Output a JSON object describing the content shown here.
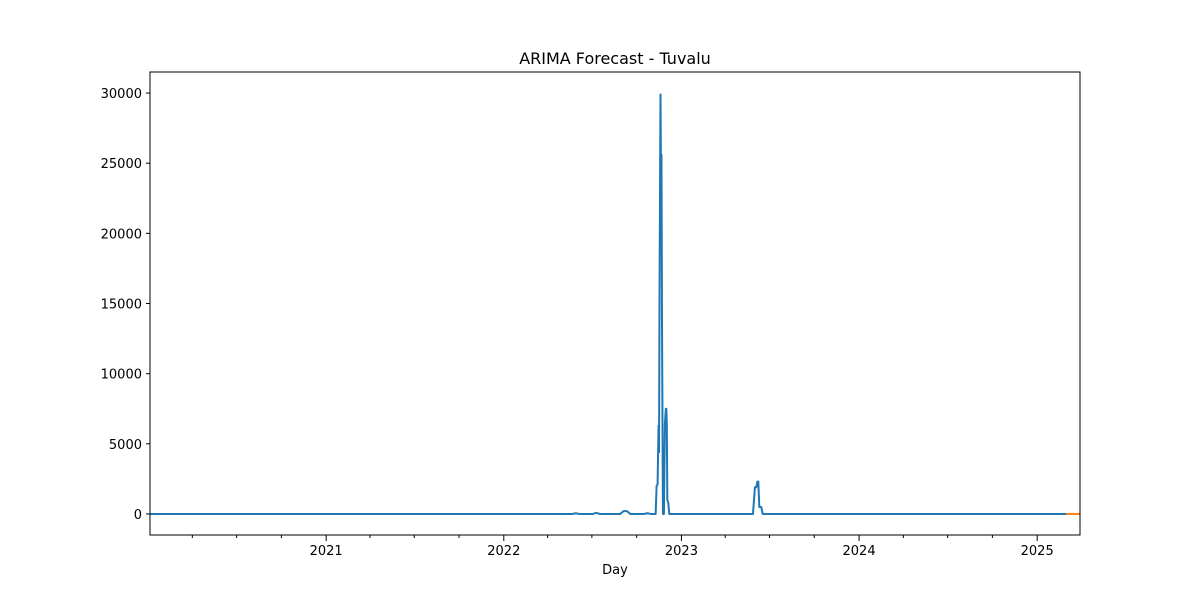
{
  "chart_data": {
    "type": "line",
    "title": "ARIMA Forecast - Tuvalu",
    "xlabel": "Day",
    "ylabel": "",
    "x_axis": "date",
    "xlim": [
      "2020-01-05",
      "2025-03-30"
    ],
    "ylim": [
      -1500,
      31500
    ],
    "yticks": [
      0,
      5000,
      10000,
      15000,
      20000,
      25000,
      30000
    ],
    "xticks": [
      {
        "label": "2021",
        "date": "2021-01-01"
      },
      {
        "label": "2022",
        "date": "2022-01-01"
      },
      {
        "label": "2023",
        "date": "2023-01-01"
      },
      {
        "label": "2024",
        "date": "2024-01-01"
      },
      {
        "label": "2025",
        "date": "2025-01-01"
      }
    ],
    "minor_xticks": [
      "2020-04-01",
      "2020-07-01",
      "2020-10-01",
      "2021-04-01",
      "2021-07-01",
      "2021-10-01",
      "2022-04-01",
      "2022-07-01",
      "2022-10-01",
      "2023-04-01",
      "2023-07-01",
      "2023-10-01",
      "2024-04-01",
      "2024-07-01",
      "2024-10-01",
      "2025-04-01"
    ],
    "grid": false,
    "series": [
      {
        "color": "#1f77b4",
        "points": [
          [
            "2020-01-05",
            0
          ],
          [
            "2022-05-22",
            0
          ],
          [
            "2022-05-29",
            50
          ],
          [
            "2022-06-05",
            0
          ],
          [
            "2022-07-03",
            0
          ],
          [
            "2022-07-10",
            80
          ],
          [
            "2022-07-17",
            0
          ],
          [
            "2022-08-28",
            0
          ],
          [
            "2022-09-04",
            200
          ],
          [
            "2022-09-11",
            200
          ],
          [
            "2022-09-18",
            0
          ],
          [
            "2022-10-16",
            0
          ],
          [
            "2022-10-23",
            50
          ],
          [
            "2022-10-30",
            0
          ],
          [
            "2022-11-09",
            0
          ],
          [
            "2022-11-11",
            2000
          ],
          [
            "2022-11-13",
            2100
          ],
          [
            "2022-11-15",
            6300
          ],
          [
            "2022-11-16",
            4400
          ],
          [
            "2022-11-17",
            15700
          ],
          [
            "2022-11-19",
            29900
          ],
          [
            "2022-11-20",
            24000
          ],
          [
            "2022-11-21",
            25600
          ],
          [
            "2022-11-22",
            14200
          ],
          [
            "2022-11-24",
            0
          ],
          [
            "2022-11-26",
            0
          ],
          [
            "2022-11-28",
            6400
          ],
          [
            "2022-11-30",
            7500
          ],
          [
            "2022-12-01",
            7500
          ],
          [
            "2022-12-02",
            6400
          ],
          [
            "2022-12-03",
            1000
          ],
          [
            "2022-12-05",
            800
          ],
          [
            "2022-12-07",
            0
          ],
          [
            "2023-05-28",
            0
          ],
          [
            "2023-06-01",
            1900
          ],
          [
            "2023-06-04",
            1900
          ],
          [
            "2023-06-06",
            2300
          ],
          [
            "2023-06-08",
            2300
          ],
          [
            "2023-06-10",
            500
          ],
          [
            "2023-06-14",
            500
          ],
          [
            "2023-06-17",
            0
          ],
          [
            "2025-03-02",
            0
          ]
        ]
      },
      {
        "color": "#ff7f0e",
        "points": [
          [
            "2025-03-02",
            0
          ],
          [
            "2025-03-30",
            0
          ]
        ]
      }
    ]
  }
}
